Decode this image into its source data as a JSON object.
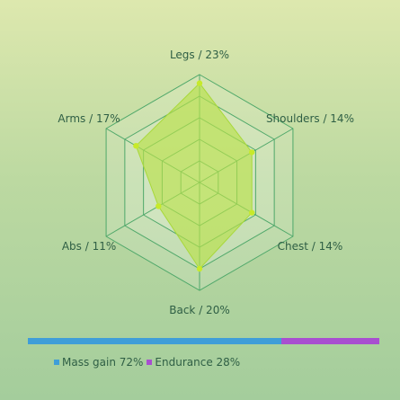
{
  "chart_data": {
    "type": "radar",
    "axes": [
      {
        "name": "Legs",
        "value": 23,
        "label": "Legs / 23%"
      },
      {
        "name": "Shoulders",
        "value": 14,
        "label": "Shoulders / 14%"
      },
      {
        "name": "Chest",
        "value": 14,
        "label": "Chest / 14%"
      },
      {
        "name": "Back",
        "value": 20,
        "label": "Back / 20%"
      },
      {
        "name": "Abs",
        "value": 11,
        "label": "Abs / 11%"
      },
      {
        "name": "Arms",
        "value": 17,
        "label": "Arms / 17%"
      }
    ],
    "rmax": 25,
    "rings": 5,
    "grid": true,
    "colors": {
      "grid": "#4fa86a",
      "grid_fill": "#ffffff",
      "area": "#b9e04a",
      "area_stroke": "#a8d83a",
      "point": "#c7ea2a"
    }
  },
  "split_bar": {
    "segments": [
      {
        "name": "Mass gain",
        "value": 72,
        "label": "Mass gain 72%",
        "color": "#3f9ed8"
      },
      {
        "name": "Endurance",
        "value": 28,
        "label": "Endurance 28%",
        "color": "#a84fd0"
      }
    ]
  }
}
